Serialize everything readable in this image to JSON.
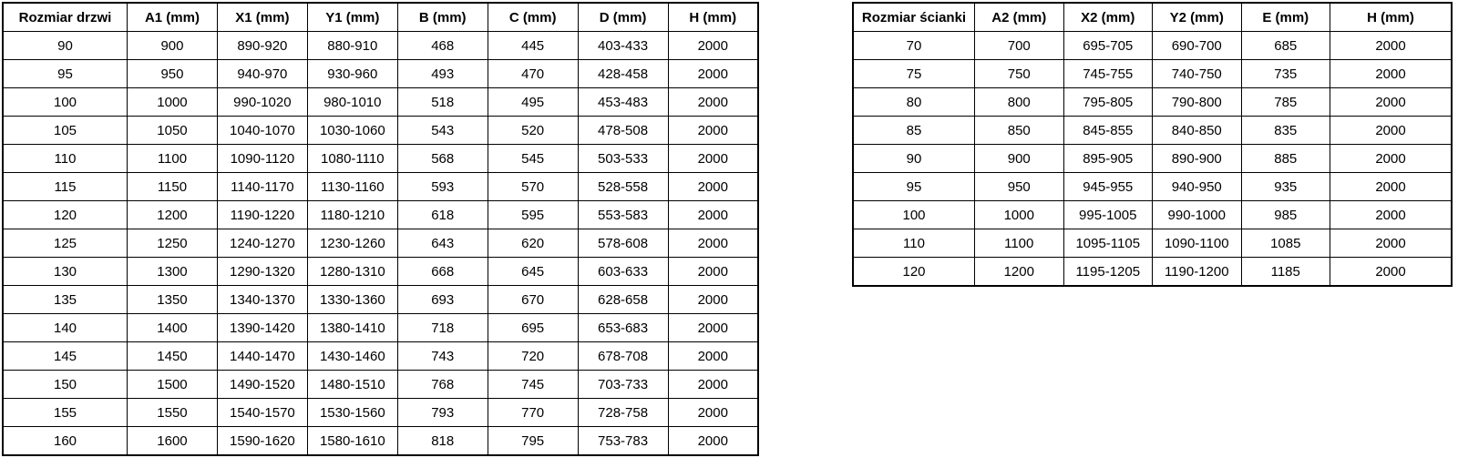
{
  "page": {
    "background": "#ffffff",
    "border_color": "#000000",
    "text_color": "#000000"
  },
  "tables": [
    {
      "name": "door-sizes",
      "headers": [
        "Rozmiar drzwi",
        "A1 (mm)",
        "X1 (mm)",
        "Y1 (mm)",
        "B (mm)",
        "C (mm)",
        "D (mm)",
        "H (mm)"
      ],
      "rows": [
        [
          "90",
          "900",
          "890-920",
          "880-910",
          "468",
          "445",
          "403-433",
          "2000"
        ],
        [
          "95",
          "950",
          "940-970",
          "930-960",
          "493",
          "470",
          "428-458",
          "2000"
        ],
        [
          "100",
          "1000",
          "990-1020",
          "980-1010",
          "518",
          "495",
          "453-483",
          "2000"
        ],
        [
          "105",
          "1050",
          "1040-1070",
          "1030-1060",
          "543",
          "520",
          "478-508",
          "2000"
        ],
        [
          "110",
          "1100",
          "1090-1120",
          "1080-1110",
          "568",
          "545",
          "503-533",
          "2000"
        ],
        [
          "115",
          "1150",
          "1140-1170",
          "1130-1160",
          "593",
          "570",
          "528-558",
          "2000"
        ],
        [
          "120",
          "1200",
          "1190-1220",
          "1180-1210",
          "618",
          "595",
          "553-583",
          "2000"
        ],
        [
          "125",
          "1250",
          "1240-1270",
          "1230-1260",
          "643",
          "620",
          "578-608",
          "2000"
        ],
        [
          "130",
          "1300",
          "1290-1320",
          "1280-1310",
          "668",
          "645",
          "603-633",
          "2000"
        ],
        [
          "135",
          "1350",
          "1340-1370",
          "1330-1360",
          "693",
          "670",
          "628-658",
          "2000"
        ],
        [
          "140",
          "1400",
          "1390-1420",
          "1380-1410",
          "718",
          "695",
          "653-683",
          "2000"
        ],
        [
          "145",
          "1450",
          "1440-1470",
          "1430-1460",
          "743",
          "720",
          "678-708",
          "2000"
        ],
        [
          "150",
          "1500",
          "1490-1520",
          "1480-1510",
          "768",
          "745",
          "703-733",
          "2000"
        ],
        [
          "155",
          "1550",
          "1540-1570",
          "1530-1560",
          "793",
          "770",
          "728-758",
          "2000"
        ],
        [
          "160",
          "1600",
          "1590-1620",
          "1580-1610",
          "818",
          "795",
          "753-783",
          "2000"
        ]
      ]
    },
    {
      "name": "wall-sizes",
      "headers": [
        "Rozmiar ścianki",
        "A2 (mm)",
        "X2 (mm)",
        "Y2 (mm)",
        "E (mm)",
        "H (mm)"
      ],
      "rows": [
        [
          "70",
          "700",
          "695-705",
          "690-700",
          "685",
          "2000"
        ],
        [
          "75",
          "750",
          "745-755",
          "740-750",
          "735",
          "2000"
        ],
        [
          "80",
          "800",
          "795-805",
          "790-800",
          "785",
          "2000"
        ],
        [
          "85",
          "850",
          "845-855",
          "840-850",
          "835",
          "2000"
        ],
        [
          "90",
          "900",
          "895-905",
          "890-900",
          "885",
          "2000"
        ],
        [
          "95",
          "950",
          "945-955",
          "940-950",
          "935",
          "2000"
        ],
        [
          "100",
          "1000",
          "995-1005",
          "990-1000",
          "985",
          "2000"
        ],
        [
          "110",
          "1100",
          "1095-1105",
          "1090-1100",
          "1085",
          "2000"
        ],
        [
          "120",
          "1200",
          "1195-1205",
          "1190-1200",
          "1185",
          "2000"
        ]
      ]
    }
  ]
}
